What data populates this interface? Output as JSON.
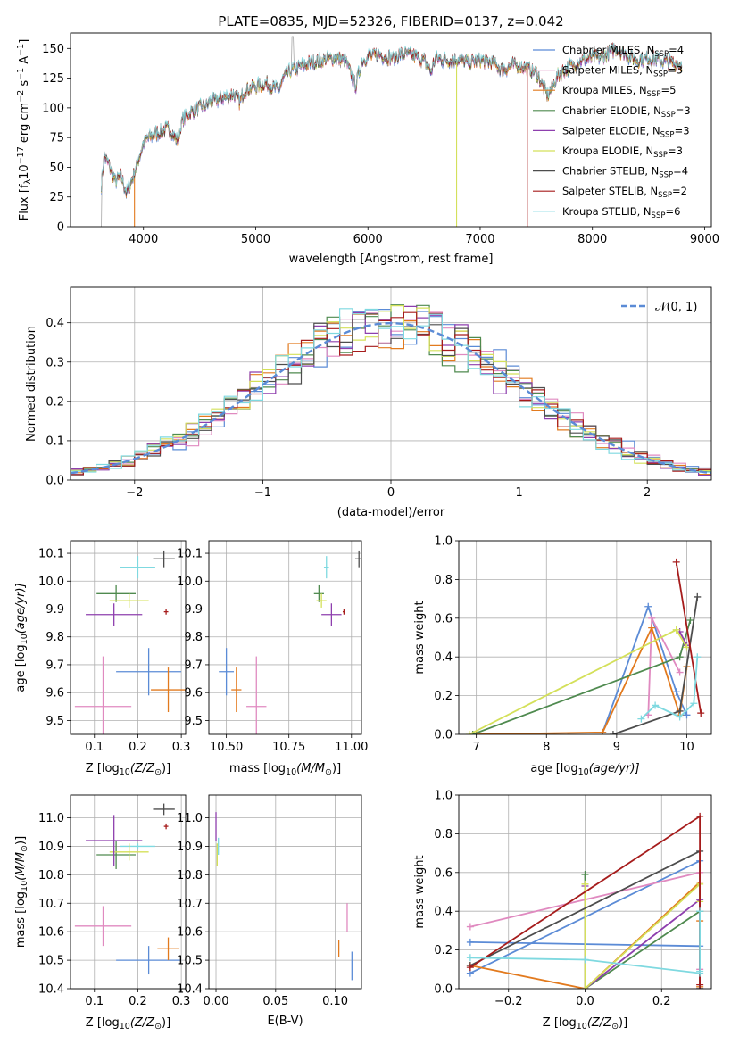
{
  "title": "PLATE=0835, MJD=52326, FIBERID=0137, z=0.042",
  "colors": {
    "chabrier_miles": "#5b8bd6",
    "salpeter_miles": "#e08ac0",
    "kroupa_miles": "#e27a1e",
    "chabrier_elodie": "#4f8a4f",
    "salpeter_elodie": "#8e3fae",
    "kroupa_elodie": "#d4e05a",
    "chabrier_stelib": "#4d4d4d",
    "salpeter_stelib": "#a61c1c",
    "kroupa_stelib": "#7fd9e0",
    "gauss": "#5b8bd6"
  },
  "chart_data": [
    {
      "id": "spectrum",
      "type": "line",
      "title": "PLATE=0835, MJD=52326, FIBERID=0137, z=0.042",
      "xlabel": "wavelength [Angstrom, rest frame]",
      "ylabel_parts": [
        "Flux [f",
        "λ",
        "10",
        "−17",
        " erg cm",
        "−2",
        " s",
        "−1",
        " A",
        "−1",
        "]"
      ],
      "xlim": [
        3350,
        9060
      ],
      "ylim": [
        0,
        163
      ],
      "xticks": [
        4000,
        5000,
        6000,
        7000,
        8000,
        9000
      ],
      "yticks": [
        0,
        25,
        50,
        75,
        100,
        125,
        150
      ],
      "legend": [
        {
          "name": "Chabrier MILES, N",
          "sub": "SSP",
          "eq": "=4",
          "key": "chabrier_miles"
        },
        {
          "name": "Salpeter MILES, N",
          "sub": "SSP",
          "eq": "=3",
          "key": "salpeter_miles"
        },
        {
          "name": "Kroupa MILES, N",
          "sub": "SSP",
          "eq": "=5",
          "key": "kroupa_miles"
        },
        {
          "name": "Chabrier ELODIE, N",
          "sub": "SSP",
          "eq": "=3",
          "key": "chabrier_elodie"
        },
        {
          "name": "Salpeter ELODIE, N",
          "sub": "SSP",
          "eq": "=3",
          "key": "salpeter_elodie"
        },
        {
          "name": "Kroupa ELODIE, N",
          "sub": "SSP",
          "eq": "=3",
          "key": "kroupa_elodie"
        },
        {
          "name": "Chabrier STELIB, N",
          "sub": "SSP",
          "eq": "=4",
          "key": "chabrier_stelib"
        },
        {
          "name": "Salpeter STELIB, N",
          "sub": "SSP",
          "eq": "=2",
          "key": "salpeter_stelib"
        },
        {
          "name": "Kroupa STELIB, N",
          "sub": "SSP",
          "eq": "=6",
          "key": "kroupa_stelib"
        }
      ],
      "spectrum_knots": [
        [
          3620,
          30
        ],
        [
          3650,
          60
        ],
        [
          3700,
          50
        ],
        [
          3750,
          38
        ],
        [
          3800,
          42
        ],
        [
          3850,
          28
        ],
        [
          3900,
          40
        ],
        [
          3950,
          55
        ],
        [
          4000,
          70
        ],
        [
          4050,
          75
        ],
        [
          4100,
          78
        ],
        [
          4150,
          80
        ],
        [
          4200,
          82
        ],
        [
          4250,
          80
        ],
        [
          4300,
          72
        ],
        [
          4350,
          90
        ],
        [
          4400,
          95
        ],
        [
          4450,
          98
        ],
        [
          4500,
          100
        ],
        [
          4550,
          102
        ],
        [
          4600,
          105
        ],
        [
          4700,
          108
        ],
        [
          4800,
          112
        ],
        [
          4860,
          105
        ],
        [
          4900,
          115
        ],
        [
          5000,
          118
        ],
        [
          5100,
          120
        ],
        [
          5200,
          115
        ],
        [
          5250,
          125
        ],
        [
          5300,
          130
        ],
        [
          5400,
          135
        ],
        [
          5500,
          138
        ],
        [
          5600,
          140
        ],
        [
          5700,
          142
        ],
        [
          5800,
          140
        ],
        [
          5890,
          118
        ],
        [
          5950,
          140
        ],
        [
          6000,
          143
        ],
        [
          6100,
          145
        ],
        [
          6200,
          142
        ],
        [
          6300,
          145
        ],
        [
          6400,
          144
        ],
        [
          6500,
          140
        ],
        [
          6563,
          130
        ],
        [
          6600,
          142
        ],
        [
          6700,
          140
        ],
        [
          6800,
          141
        ],
        [
          6900,
          138
        ],
        [
          7000,
          140
        ],
        [
          7100,
          138
        ],
        [
          7200,
          132
        ],
        [
          7300,
          136
        ],
        [
          7400,
          134
        ],
        [
          7500,
          130
        ],
        [
          7600,
          110
        ],
        [
          7700,
          128
        ],
        [
          7800,
          135
        ],
        [
          7900,
          140
        ],
        [
          8000,
          142
        ],
        [
          8100,
          143
        ],
        [
          8200,
          150
        ],
        [
          8300,
          145
        ],
        [
          8400,
          140
        ],
        [
          8500,
          142
        ],
        [
          8600,
          140
        ],
        [
          8700,
          138
        ],
        [
          8800,
          136
        ]
      ],
      "dropouts": [
        {
          "key": "kroupa_miles",
          "x": 3920,
          "until": 3900
        },
        {
          "key": "kroupa_elodie",
          "x": 6790,
          "until": 6790
        },
        {
          "key": "salpeter_stelib",
          "x": 7420,
          "until": 7420
        }
      ]
    },
    {
      "id": "residuals",
      "type": "histogram",
      "xlabel": "(data-model)/error",
      "ylabel": "Normed distribution",
      "xlim": [
        -2.5,
        2.5
      ],
      "ylim": [
        0,
        0.49
      ],
      "xticks": [
        -2,
        -1,
        0,
        1,
        2
      ],
      "yticks": [
        0.0,
        0.1,
        0.2,
        0.3,
        0.4
      ],
      "legend": "𝒩(0, 1)",
      "bin_width": 0.1
    },
    {
      "id": "age_vs_Z",
      "type": "errorbar",
      "xlabel_parts": [
        "Z [log",
        "10",
        "(Z/Z",
        "⊙",
        ")]"
      ],
      "ylabel_parts": [
        "age  [log",
        "10",
        "(age/yr)]"
      ],
      "xlim": [
        0.045,
        0.31
      ],
      "ylim": [
        9.45,
        10.145
      ],
      "xticks": [
        0.1,
        0.2,
        0.3
      ],
      "yticks": [
        9.5,
        9.6,
        9.7,
        9.8,
        9.9,
        10.0,
        10.1
      ],
      "points": [
        {
          "key": "chabrier_stelib",
          "x": 0.26,
          "xerr": 0.025,
          "y": 10.08,
          "yerr": 0.03
        },
        {
          "key": "kroupa_stelib",
          "x": 0.2,
          "xerr": 0.04,
          "y": 10.05,
          "yerr": 0.04
        },
        {
          "key": "chabrier_elodie",
          "x": 0.15,
          "xerr": 0.045,
          "y": 9.955,
          "yerr": 0.03
        },
        {
          "key": "kroupa_elodie",
          "x": 0.18,
          "xerr": 0.045,
          "y": 9.93,
          "yerr": 0.025
        },
        {
          "key": "salpeter_elodie",
          "x": 0.145,
          "xerr": 0.065,
          "y": 9.88,
          "yerr": 0.04
        },
        {
          "key": "salpeter_stelib",
          "x": 0.265,
          "xerr": 0.005,
          "y": 9.89,
          "yerr": 0.01
        },
        {
          "key": "chabrier_miles",
          "x": 0.225,
          "xerr": 0.075,
          "y": 9.675,
          "yerr": 0.085
        },
        {
          "key": "salpeter_miles",
          "x": 0.12,
          "xerr": 0.065,
          "y": 9.55,
          "yerr": 0.18
        },
        {
          "key": "kroupa_miles",
          "x": 0.27,
          "xerr": 0.04,
          "y": 9.61,
          "yerr": 0.08
        }
      ]
    },
    {
      "id": "age_vs_mass",
      "type": "errorbar",
      "xlabel_parts": [
        "mass [log",
        "10",
        "(M/M",
        "⊙",
        ")]"
      ],
      "xlim": [
        10.43,
        11.04
      ],
      "ylim": [
        9.45,
        10.145
      ],
      "xticks": [
        10.5,
        10.75,
        11.0
      ],
      "xticklabels": [
        "10.50",
        "10.75",
        "11.00"
      ],
      "yticks": [
        9.5,
        9.6,
        9.7,
        9.8,
        9.9,
        10.0,
        10.1
      ],
      "points": [
        {
          "key": "chabrier_stelib",
          "x": 11.03,
          "xerr": 0.015,
          "y": 10.08,
          "yerr": 0.03
        },
        {
          "key": "kroupa_stelib",
          "x": 10.9,
          "xerr": 0.01,
          "y": 10.05,
          "yerr": 0.04
        },
        {
          "key": "chabrier_elodie",
          "x": 10.87,
          "xerr": 0.02,
          "y": 9.955,
          "yerr": 0.03
        },
        {
          "key": "kroupa_elodie",
          "x": 10.88,
          "xerr": 0.02,
          "y": 9.93,
          "yerr": 0.025
        },
        {
          "key": "salpeter_elodie",
          "x": 10.92,
          "xerr": 0.04,
          "y": 9.88,
          "yerr": 0.04
        },
        {
          "key": "salpeter_stelib",
          "x": 10.97,
          "xerr": 0.005,
          "y": 9.89,
          "yerr": 0.01
        },
        {
          "key": "chabrier_miles",
          "x": 10.5,
          "xerr": 0.03,
          "y": 9.675,
          "yerr": 0.085
        },
        {
          "key": "salpeter_miles",
          "x": 10.62,
          "xerr": 0.04,
          "y": 9.55,
          "yerr": 0.18
        },
        {
          "key": "kroupa_miles",
          "x": 10.54,
          "xerr": 0.02,
          "y": 9.61,
          "yerr": 0.08
        }
      ]
    },
    {
      "id": "weight_vs_age",
      "type": "line",
      "xlabel_parts": [
        "age  [log",
        "10",
        "(age/yr)]"
      ],
      "ylabel": "mass weight",
      "xlim": [
        6.75,
        10.35
      ],
      "ylim": [
        0,
        1.0
      ],
      "xticks": [
        7,
        8,
        9,
        10
      ],
      "yticks": [
        0.0,
        0.2,
        0.4,
        0.6,
        0.8,
        1.0
      ],
      "series": [
        {
          "key": "chabrier_miles",
          "x": [
            8.8,
            9.45,
            9.85,
            10.0
          ],
          "y": [
            0.01,
            0.66,
            0.22,
            0.1
          ]
        },
        {
          "key": "salpeter_miles",
          "x": [
            9.45,
            9.5,
            9.9
          ],
          "y": [
            0.1,
            0.6,
            0.32
          ]
        },
        {
          "key": "kroupa_miles",
          "x": [
            7.0,
            8.8,
            9.5,
            9.9,
            10.0
          ],
          "y": [
            0.0,
            0.01,
            0.55,
            0.1,
            0.35
          ]
        },
        {
          "key": "chabrier_elodie",
          "x": [
            6.95,
            9.9,
            10.05
          ],
          "y": [
            0.0,
            0.4,
            0.59
          ]
        },
        {
          "key": "salpeter_elodie",
          "x": [
            9.9,
            10.0
          ],
          "y": [
            0.53,
            0.46
          ]
        },
        {
          "key": "kroupa_elodie",
          "x": [
            6.9,
            9.85,
            10.0
          ],
          "y": [
            0.0,
            0.54,
            0.45
          ]
        },
        {
          "key": "chabrier_stelib",
          "x": [
            8.95,
            9.9,
            10.15
          ],
          "y": [
            0.0,
            0.12,
            0.71
          ]
        },
        {
          "key": "salpeter_stelib",
          "x": [
            9.85,
            10.2
          ],
          "y": [
            0.89,
            0.11
          ]
        },
        {
          "key": "kroupa_stelib",
          "x": [
            9.35,
            9.55,
            9.9,
            10.1,
            10.15
          ],
          "y": [
            0.08,
            0.15,
            0.09,
            0.16,
            0.4
          ]
        }
      ]
    },
    {
      "id": "mass_vs_Z",
      "type": "errorbar",
      "xlabel_parts": [
        "Z [log",
        "10",
        "(Z/Z",
        "⊙",
        ")]"
      ],
      "ylabel_parts": [
        "mass [log",
        "10",
        "(M/M",
        "⊙",
        ")]"
      ],
      "xlim": [
        0.045,
        0.31
      ],
      "ylim": [
        10.4,
        11.08
      ],
      "xticks": [
        0.1,
        0.2,
        0.3
      ],
      "yticks": [
        10.4,
        10.5,
        10.6,
        10.7,
        10.8,
        10.9,
        11.0
      ],
      "points": [
        {
          "key": "chabrier_stelib",
          "x": 0.26,
          "xerr": 0.025,
          "y": 11.03,
          "yerr": 0.02
        },
        {
          "key": "kroupa_stelib",
          "x": 0.2,
          "xerr": 0.04,
          "y": 10.9,
          "yerr": 0.01
        },
        {
          "key": "chabrier_elodie",
          "x": 0.15,
          "xerr": 0.045,
          "y": 10.87,
          "yerr": 0.05
        },
        {
          "key": "kroupa_elodie",
          "x": 0.18,
          "xerr": 0.045,
          "y": 10.88,
          "yerr": 0.03
        },
        {
          "key": "salpeter_elodie",
          "x": 0.145,
          "xerr": 0.065,
          "y": 10.92,
          "yerr": 0.09
        },
        {
          "key": "salpeter_stelib",
          "x": 0.265,
          "xerr": 0.005,
          "y": 10.97,
          "yerr": 0.01
        },
        {
          "key": "chabrier_miles",
          "x": 0.225,
          "xerr": 0.075,
          "y": 10.5,
          "yerr": 0.05
        },
        {
          "key": "salpeter_miles",
          "x": 0.12,
          "xerr": 0.065,
          "y": 10.62,
          "yerr": 0.07
        },
        {
          "key": "kroupa_miles",
          "x": 0.27,
          "xerr": 0.025,
          "y": 10.54,
          "yerr": 0.04
        }
      ]
    },
    {
      "id": "mass_vs_EBV",
      "type": "errorbar",
      "xlabel": "E(B-V)",
      "xlim": [
        -0.006,
        0.122
      ],
      "ylim": [
        10.4,
        11.08
      ],
      "xticks": [
        0.0,
        0.05,
        0.1
      ],
      "xticklabels": [
        "0.00",
        "0.05",
        "0.10"
      ],
      "yticks": [
        10.4,
        10.5,
        10.6,
        10.7,
        10.8,
        10.9,
        11.0
      ],
      "points": [
        {
          "key": "salpeter_elodie",
          "x": 0.0,
          "xerr": 0.0,
          "y": 10.97,
          "yerr": 0.05
        },
        {
          "key": "kroupa_stelib",
          "x": 0.002,
          "xerr": 0.0,
          "y": 10.9,
          "yerr": 0.03
        },
        {
          "key": "kroupa_elodie",
          "x": 0.001,
          "xerr": 0.0,
          "y": 10.87,
          "yerr": 0.04
        },
        {
          "key": "salpeter_miles",
          "x": 0.11,
          "xerr": 0.0,
          "y": 10.65,
          "yerr": 0.05
        },
        {
          "key": "kroupa_miles",
          "x": 0.103,
          "xerr": 0.0,
          "y": 10.54,
          "yerr": 0.03
        },
        {
          "key": "chabrier_miles",
          "x": 0.114,
          "xerr": 0.0,
          "y": 10.48,
          "yerr": 0.05
        }
      ]
    },
    {
      "id": "weight_vs_Z",
      "type": "line",
      "xlabel_parts": [
        "Z [log",
        "10",
        "(Z/Z",
        "⊙",
        ")]"
      ],
      "ylabel": "mass weight",
      "xlim": [
        -0.33,
        0.33
      ],
      "ylim": [
        0,
        1.0
      ],
      "xticks": [
        -0.2,
        0.0,
        0.2
      ],
      "xticklabels": [
        "−0.2",
        "0.0",
        "0.2"
      ],
      "yticks": [
        0.0,
        0.2,
        0.4,
        0.6,
        0.8,
        1.0
      ],
      "series": [
        {
          "key": "chabrier_miles",
          "x": [
            -0.3,
            0.3,
            0.3,
            -0.3
          ],
          "y": [
            0.08,
            0.66,
            0.22,
            0.24
          ]
        },
        {
          "key": "salpeter_miles",
          "x": [
            -0.3,
            0.3,
            0.3
          ],
          "y": [
            0.32,
            0.6,
            0.1
          ]
        },
        {
          "key": "kroupa_miles",
          "x": [
            -0.3,
            0.0,
            0.3,
            0.3,
            0.3
          ],
          "y": [
            0.12,
            0.0,
            0.55,
            0.01,
            0.35
          ]
        },
        {
          "key": "chabrier_elodie",
          "x": [
            0.0,
            0.0,
            0.3,
            0.3
          ],
          "y": [
            0.59,
            0.0,
            0.4,
            0.0
          ]
        },
        {
          "key": "salpeter_elodie",
          "x": [
            0.0,
            0.0,
            0.3,
            0.3
          ],
          "y": [
            0.53,
            0.0,
            0.46,
            0.0
          ]
        },
        {
          "key": "kroupa_elodie",
          "x": [
            0.0,
            0.0,
            0.3,
            0.3
          ],
          "y": [
            0.54,
            0.0,
            0.54,
            0.45
          ]
        },
        {
          "key": "chabrier_stelib",
          "x": [
            -0.3,
            0.3,
            0.3
          ],
          "y": [
            0.12,
            0.71,
            0.0
          ]
        },
        {
          "key": "salpeter_stelib",
          "x": [
            -0.3,
            0.3,
            0.3
          ],
          "y": [
            0.11,
            0.89,
            0.02
          ]
        },
        {
          "key": "kroupa_stelib",
          "x": [
            -0.3,
            0.0,
            0.3,
            0.3,
            0.3
          ],
          "y": [
            0.16,
            0.15,
            0.08,
            0.4,
            0.09
          ]
        }
      ]
    }
  ]
}
